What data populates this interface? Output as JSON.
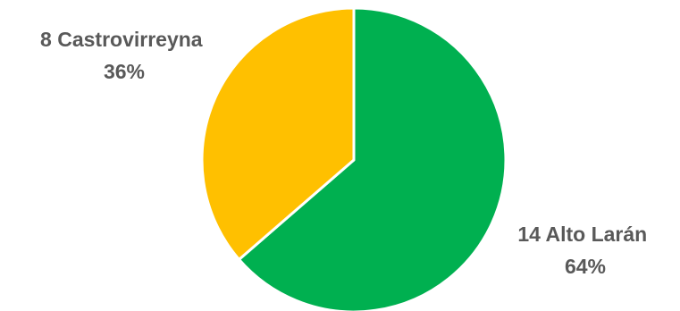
{
  "chart_data": {
    "type": "pie",
    "slices": [
      {
        "category": "Alto Larán",
        "value": 14,
        "percent_label": "64%",
        "color": "#00B050",
        "label_line1": "14 Alto Larán",
        "label_line2": "64%"
      },
      {
        "category": "Castrovirreyna",
        "value": 8,
        "percent_label": "36%",
        "color": "#FFC000",
        "label_line1": "8 Castrovirreyna",
        "label_line2": "36%"
      }
    ],
    "start": "12 o'clock",
    "direction": "clockwise",
    "legend": "none",
    "slice_border_color": "#ffffff",
    "label_color": "#595959"
  }
}
